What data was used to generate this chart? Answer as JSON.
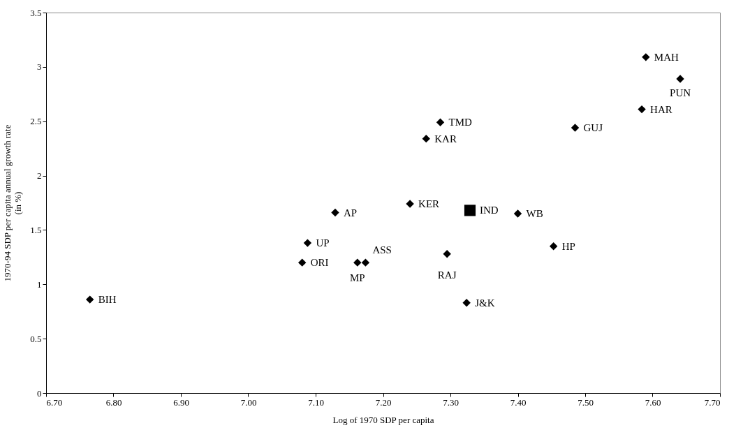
{
  "chart_data": {
    "type": "scatter",
    "xlabel": "Log of 1970 SDP per capita",
    "ylabel": "1970-94 SDP per capita annual growth rate (in %)",
    "xlim": [
      6.7,
      7.7
    ],
    "xticks": [
      {
        "value": 6.7,
        "label": "6.70"
      },
      {
        "value": 6.8,
        "label": "6.80"
      },
      {
        "value": 6.9,
        "label": "6.90"
      },
      {
        "value": 7.0,
        "label": "7.00"
      },
      {
        "value": 7.1,
        "label": "7.10"
      },
      {
        "value": 7.2,
        "label": "7.20"
      },
      {
        "value": 7.3,
        "label": "7.30"
      },
      {
        "value": 7.4,
        "label": "7.40"
      },
      {
        "value": 7.5,
        "label": "7.50"
      },
      {
        "value": 7.6,
        "label": "7.60"
      },
      {
        "value": 7.7,
        "label": "7.70"
      }
    ],
    "ylim": [
      0,
      3.5
    ],
    "yticks": [
      0,
      0.5,
      1,
      1.5,
      2,
      2.5,
      3,
      3.5
    ],
    "grid": false,
    "marker": "diamond",
    "series": [
      {
        "name": "BIH",
        "color": "#000000",
        "x": [
          6.765
        ],
        "values": [
          0.86
        ]
      },
      {
        "name": "ORI",
        "color": "#000000",
        "x": [
          7.08
        ],
        "values": [
          1.2
        ]
      },
      {
        "name": "UP",
        "color": "#000000",
        "x": [
          7.088
        ],
        "values": [
          1.38
        ]
      },
      {
        "name": "MP",
        "color": "#000000",
        "x": [
          7.162
        ],
        "values": [
          1.2
        ]
      },
      {
        "name": "ASS",
        "color": "#000000",
        "x": [
          7.174
        ],
        "values": [
          1.2
        ]
      },
      {
        "name": "AP",
        "color": "#000000",
        "x": [
          7.129
        ],
        "values": [
          1.66
        ]
      },
      {
        "name": "KER",
        "color": "#000000",
        "x": [
          7.24
        ],
        "values": [
          1.74
        ]
      },
      {
        "name": "IND",
        "color": "#000000",
        "x": [
          7.329
        ],
        "values": [
          1.68
        ],
        "marker": "square"
      },
      {
        "name": "WB",
        "color": "#000000",
        "x": [
          7.4
        ],
        "values": [
          1.65
        ]
      },
      {
        "name": "HP",
        "color": "#000000",
        "x": [
          7.453
        ],
        "values": [
          1.35
        ]
      },
      {
        "name": "RAJ",
        "color": "#000000",
        "x": [
          7.295
        ],
        "values": [
          1.28
        ]
      },
      {
        "name": "J&K",
        "color": "#000000",
        "x": [
          7.324
        ],
        "values": [
          0.83
        ]
      },
      {
        "name": "TMD",
        "color": "#000000",
        "x": [
          7.285
        ],
        "values": [
          2.49
        ]
      },
      {
        "name": "KAR",
        "color": "#000000",
        "x": [
          7.264
        ],
        "values": [
          2.34
        ]
      },
      {
        "name": "GUJ",
        "color": "#000000",
        "x": [
          7.485
        ],
        "values": [
          2.44
        ]
      },
      {
        "name": "HAR",
        "color": "#000000",
        "x": [
          7.584
        ],
        "values": [
          2.61
        ]
      },
      {
        "name": "MAH",
        "color": "#000000",
        "x": [
          7.59
        ],
        "values": [
          3.09
        ]
      },
      {
        "name": "PUN",
        "color": "#000000",
        "x": [
          7.641
        ],
        "values": [
          2.89
        ]
      }
    ]
  }
}
